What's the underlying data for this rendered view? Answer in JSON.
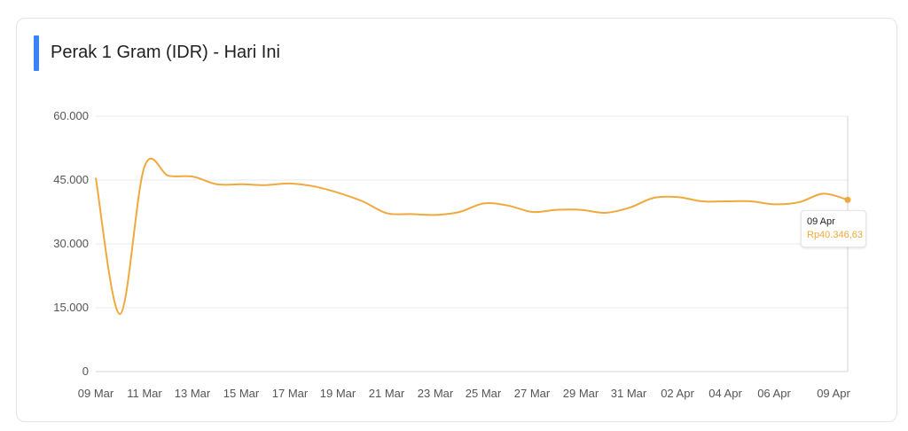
{
  "title": "Perak 1 Gram (IDR) - Hari Ini",
  "colors": {
    "accent": "#3b82f6",
    "line": "#f0a93e",
    "grid": "#e8e8e8"
  },
  "tooltip": {
    "date": "09 Apr",
    "value": "Rp40.346,63"
  },
  "chart_data": {
    "type": "line",
    "ylim": [
      0,
      60000
    ],
    "yticks": [
      {
        "value": 0,
        "label": "0"
      },
      {
        "value": 15000,
        "label": "15.000"
      },
      {
        "value": 30000,
        "label": "30.000"
      },
      {
        "value": 45000,
        "label": "45.000"
      },
      {
        "value": 60000,
        "label": "60.000"
      }
    ],
    "xticks": [
      "09 Mar",
      "11 Mar",
      "13 Mar",
      "15 Mar",
      "17 Mar",
      "19 Mar",
      "21 Mar",
      "23 Mar",
      "25 Mar",
      "27 Mar",
      "29 Mar",
      "31 Mar",
      "02 Apr",
      "04 Apr",
      "06 Apr",
      "09 Apr"
    ],
    "grid": true,
    "series": [
      {
        "values": [
          45500,
          13500,
          48000,
          46000,
          45800,
          44000,
          44000,
          43800,
          44200,
          43500,
          42000,
          40000,
          37200,
          37000,
          36800,
          37500,
          39500,
          39000,
          37500,
          38000,
          38000,
          37300,
          38500,
          40800,
          41000,
          40000,
          40000,
          40000,
          39300,
          39800,
          41800,
          40346.63
        ]
      }
    ]
  }
}
